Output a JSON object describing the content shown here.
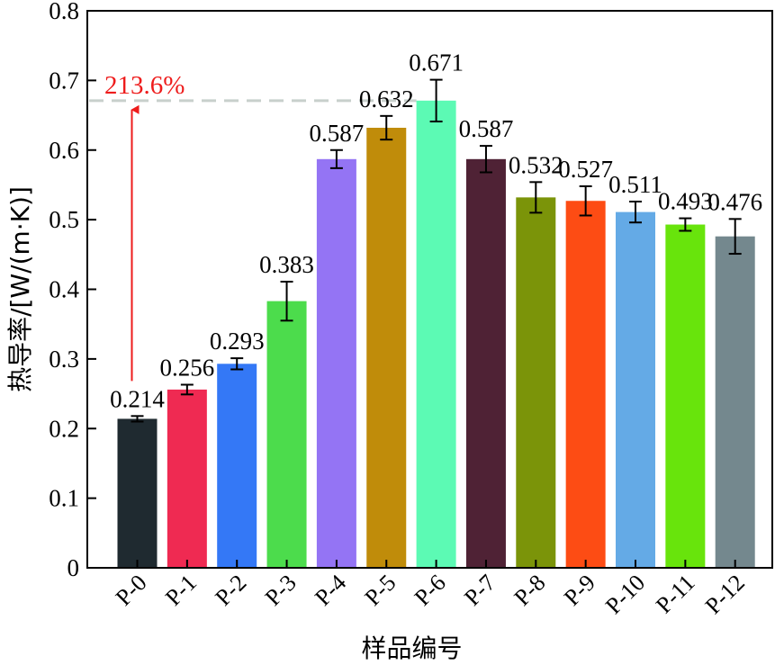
{
  "chart_data": {
    "type": "bar",
    "categories": [
      "P-0",
      "P-1",
      "P-2",
      "P-3",
      "P-4",
      "P-5",
      "P-6",
      "P-7",
      "P-8",
      "P-9",
      "P-10",
      "P-11",
      "P-12"
    ],
    "values": [
      0.214,
      0.256,
      0.293,
      0.383,
      0.587,
      0.632,
      0.671,
      0.587,
      0.532,
      0.527,
      0.511,
      0.493,
      0.476
    ],
    "value_labels": [
      "0.214",
      "0.256",
      "0.293",
      "0.383",
      "0.587",
      "0.632",
      "0.671",
      "0.587",
      "0.532",
      "0.527",
      "0.511",
      "0.493",
      "0.476"
    ],
    "errors": [
      0.004,
      0.007,
      0.008,
      0.028,
      0.013,
      0.017,
      0.03,
      0.019,
      0.022,
      0.021,
      0.015,
      0.009,
      0.025
    ],
    "colors": [
      "#1f2a30",
      "#ef2a52",
      "#3478f6",
      "#4cdc4c",
      "#9474f4",
      "#c08c0a",
      "#5cfab4",
      "#4f2235",
      "#7b9409",
      "#fd4c14",
      "#64aae6",
      "#68e40c",
      "#74888e"
    ],
    "title": "",
    "xlabel": "样品编号",
    "ylabel": "热导率/[W/(m·K)]",
    "ylim": [
      0,
      0.8
    ],
    "yticks": [
      "0",
      "0.1",
      "0.2",
      "0.3",
      "0.4",
      "0.5",
      "0.6",
      "0.7",
      "0.8"
    ],
    "grid": false,
    "annotation": {
      "text": "213.6%",
      "color": "#ee1c1c",
      "from_value": 0.214,
      "to_value": 0.671,
      "reference_line_value": 0.671,
      "reference_line_color": "#c8d0cc"
    }
  }
}
